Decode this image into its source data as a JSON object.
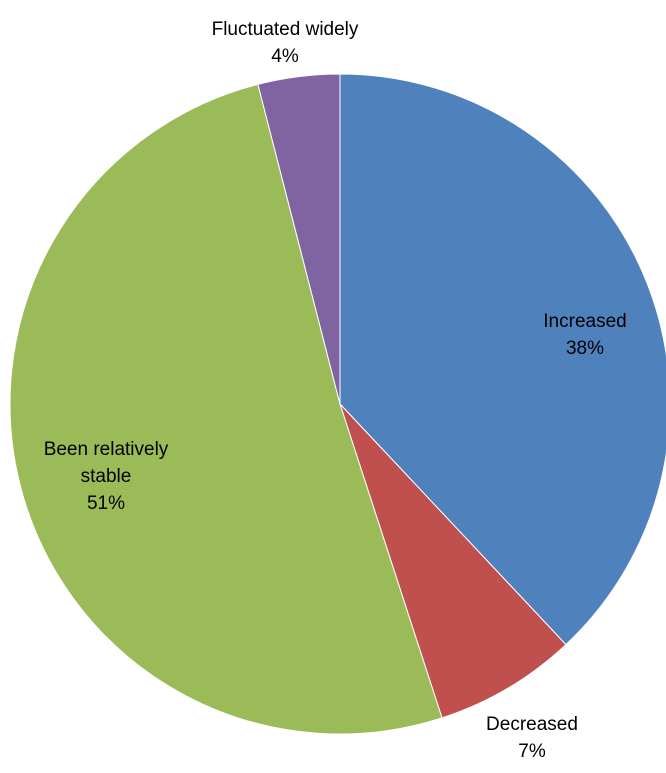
{
  "chart_data": {
    "type": "pie",
    "title": "",
    "start_angle_deg": 0,
    "direction": "clockwise",
    "legend": "none",
    "slices": [
      {
        "label_lines": [
          "Increased"
        ],
        "value": 38,
        "value_label": "38%",
        "color": "#4F81BD"
      },
      {
        "label_lines": [
          "Decreased"
        ],
        "value": 7,
        "value_label": "7%",
        "color": "#C0504D"
      },
      {
        "label_lines": [
          "Been relatively",
          "stable"
        ],
        "value": 51,
        "value_label": "51%",
        "color": "#9BBB59"
      },
      {
        "label_lines": [
          "Fluctuated widely"
        ],
        "value": 4,
        "value_label": "4%",
        "color": "#8064A2"
      }
    ]
  }
}
